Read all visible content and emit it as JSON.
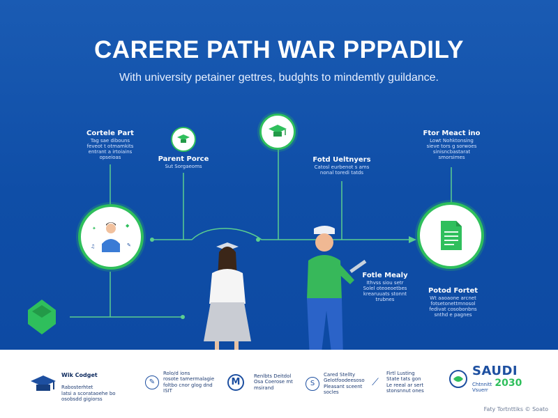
{
  "header": {
    "title": "CARERE PATH WAR PPPADILY",
    "subtitle": "With university petainer gettres, budghts to mindemtly guildance."
  },
  "nodes": [
    {
      "title": "Cortele Part",
      "desc": "Tag sae dibouns\nfeveot t otmamkits\nentrant a irtoiains\nopseioas"
    },
    {
      "title": "Parent Porce",
      "desc": "Sut Sorgaeoms"
    },
    {
      "title": "Fotd Ueltnyers",
      "desc": "Catosl eurbenot s ams\nnonal toredi tatds"
    },
    {
      "title": "Ftor Meact ino",
      "desc": "Lowt Nohktonsing\nsieve tors g sorwoes\nsinisncbastarat\nsmorsimes"
    },
    {
      "title": "Fotle Mealy",
      "desc": "Ithvss siou setr\nSolel oteoeoetbes\nkrearuuats stonnt\ntrubnes"
    },
    {
      "title": "Potod Fortet",
      "desc": "Wt aaoaone arcnet\nfotsetonettmnosol\nfedivat cosobonbns\nsnthd e pagnes"
    }
  ],
  "footer": {
    "items": [
      {
        "title": "Wik Codget",
        "desc": "Rabosterhtet\nlatsi a scorataoehe bo\nosobsdd gigiorss"
      },
      {
        "desc": "Rolo/d ions\nrosote tamermalagie\nfoltbo cnor glog dnd\nISIT"
      },
      {
        "desc": "Renlbts Deitdol\nOsa Coerose mt\nmsirand"
      },
      {
        "desc": "Cared Stellty\nGelotfoodeesoso\nPleasant sceent\nsocles"
      },
      {
        "desc": "Firtl Lusting\nState tats gon\nLe reeal ar sert\nstonsnnut ones"
      }
    ],
    "m_letter": "M",
    "s_letter": "S",
    "brand": {
      "word": "SAUDI",
      "sub": "Chtnnitt\nVsuerr",
      "year": "2030"
    },
    "credit": "Faty Tortnttiks © Soato"
  },
  "colors": {
    "background_blue": "#0f4ea7",
    "accent_green": "#2fbf5c",
    "line_green": "#52c98a",
    "navy": "#1d4fa0"
  }
}
